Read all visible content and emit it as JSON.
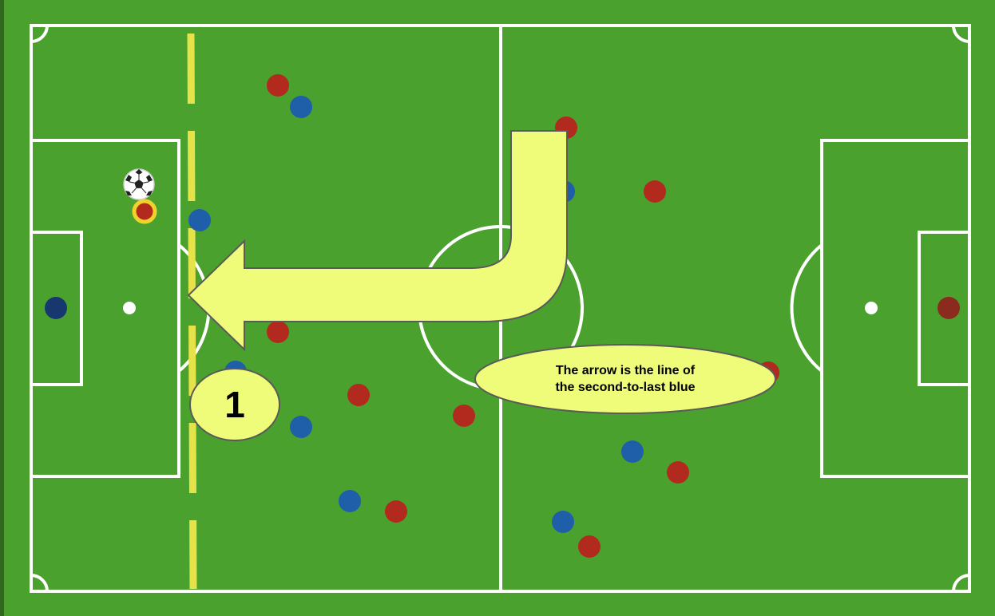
{
  "annotation": {
    "callout_text": "The arrow is the line of\nthe second-to-last blue",
    "step_number": "1"
  },
  "colors": {
    "grass": "#4aa12e",
    "lines": "#ffffff",
    "offside_line": "#e6e34a",
    "arrow_fill": "#eefc7a",
    "team_red": "#b22a1e",
    "team_blue": "#1f5ea8",
    "goalkeeper_blue": "#16386e",
    "goalkeeper_red": "#8a2b1d",
    "ball_carrier_ring": "#f0d22a"
  },
  "icons": {
    "ball": "soccer-ball-icon"
  }
}
